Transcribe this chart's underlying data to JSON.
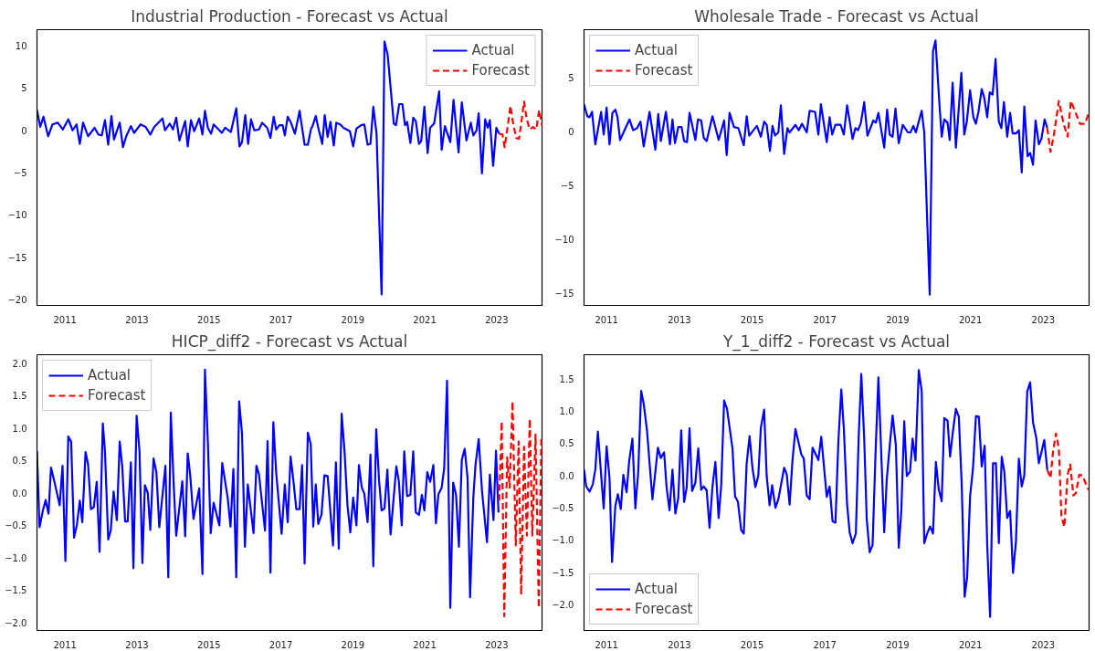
{
  "chart_data": [
    {
      "type": "line",
      "title": "Industrial Production - Forecast vs Actual",
      "legend": "top right",
      "xlim": [
        2010.22,
        2024.26
      ],
      "xticks": [
        2011,
        2013,
        2015,
        2017,
        2019,
        2021,
        2023
      ],
      "ylim": [
        -20.7,
        11.9
      ],
      "yticks": [
        {
          "value": -20,
          "label": "−20"
        },
        {
          "value": -15,
          "label": "−15"
        },
        {
          "value": -10,
          "label": "−10"
        },
        {
          "value": -5,
          "label": "−5"
        },
        0,
        5,
        10
      ],
      "series": [
        {
          "name": "Actual",
          "color": "#0000ff",
          "line_style": "solid",
          "x": [
            2010.22,
            2010.31,
            2010.4,
            2010.53,
            2010.65,
            2010.8,
            2010.94,
            2011.09,
            2011.21,
            2011.32,
            2011.41,
            2011.5,
            2011.64,
            2011.82,
            2011.93,
            2012.02,
            2012.11,
            2012.2,
            2012.29,
            2012.36,
            2012.52,
            2012.61,
            2012.7,
            2012.83,
            2012.92,
            2013.1,
            2013.24,
            2013.37,
            2013.48,
            2013.71,
            2013.78,
            2013.91,
            2014.0,
            2014.09,
            2014.18,
            2014.34,
            2014.41,
            2014.5,
            2014.59,
            2014.73,
            2014.82,
            2014.89,
            2014.97,
            2015.06,
            2015.13,
            2015.36,
            2015.45,
            2015.61,
            2015.76,
            2015.85,
            2015.92,
            2016.01,
            2016.09,
            2016.17,
            2016.26,
            2016.39,
            2016.48,
            2016.62,
            2016.71,
            2016.8,
            2016.87,
            2016.96,
            2017.05,
            2017.11,
            2017.19,
            2017.27,
            2017.39,
            2017.52,
            2017.66,
            2017.75,
            2017.84,
            2017.88,
            2017.97,
            2018.04,
            2018.15,
            2018.22,
            2018.3,
            2018.38,
            2018.47,
            2018.54,
            2018.65,
            2018.74,
            2018.92,
            2019.01,
            2019.1,
            2019.23,
            2019.32,
            2019.41,
            2019.49,
            2019.57,
            2019.66,
            2019.8,
            2019.88,
            2019.97,
            2020.14,
            2020.2,
            2020.29,
            2020.38,
            2020.45,
            2020.51,
            2020.6,
            2020.68,
            2020.75,
            2020.84,
            2020.9,
            2020.99,
            2021.08,
            2021.15,
            2021.26,
            2021.4,
            2021.47,
            2021.56,
            2021.71,
            2021.8,
            2021.94,
            2022.03,
            2022.16,
            2022.28,
            2022.35,
            2022.44,
            2022.5,
            2022.59,
            2022.68,
            2022.75,
            2022.81,
            2022.9,
            2022.99,
            2023.07
          ],
          "values": [
            2.4,
            0.4,
            1.6,
            -0.7,
            0.7,
            0.9,
            0.1,
            1.3,
            0,
            0.7,
            -1.6,
            0.9,
            -0.7,
            0.3,
            -0.5,
            -0.6,
            1.2,
            -1.7,
            1.7,
            -1.1,
            0.9,
            -2.0,
            -0.7,
            0.5,
            -0.3,
            0.7,
            0.4,
            -0.5,
            0.4,
            1.4,
            0,
            0.8,
            0.1,
            1.5,
            -1.2,
            1.1,
            -1.9,
            1.2,
            -0.1,
            1.4,
            -0.5,
            2.3,
            0.3,
            -0.4,
            0.7,
            -0.3,
            0.3,
            -0.2,
            2.6,
            -1.9,
            -1.4,
            1.8,
            -1.6,
            1.3,
            0,
            0.1,
            0.9,
            0.3,
            -0.9,
            1.6,
            0.1,
            0.6,
            0.6,
            -0.6,
            1.6,
            1.0,
            -0.4,
            2.3,
            -1.7,
            -1.7,
            0.2,
            0.5,
            1.7,
            0.3,
            -1.6,
            1.8,
            -0.8,
            1.0,
            -1.8,
            0.9,
            0.7,
            0.3,
            -0.1,
            -1.9,
            0.2,
            0.6,
            0.7,
            -1.7,
            -1.6,
            2.8,
            -0.4,
            -19.4,
            10.5,
            8.9,
            0.8,
            0.6,
            3.1,
            3.1,
            0.6,
            1.0,
            -1.5,
            1.5,
            1.1,
            -1.6,
            -1.3,
            2.8,
            -2.7,
            0.3,
            0.8,
            4.6,
            -2.3,
            0.5,
            -1.4,
            3.6,
            -2.6,
            3.3,
            -1.2,
            0.9,
            -0.6,
            0,
            2.0,
            -5.1,
            1.3,
            0.3,
            1.2,
            -4.2,
            0.3,
            -0.4
          ]
        },
        {
          "name": "Forecast",
          "color": "#ff0000",
          "line_style": "dashed",
          "x": [
            2023.07,
            2023.16,
            2023.22,
            2023.31,
            2023.38,
            2023.45,
            2023.54,
            2023.62,
            2023.7,
            2023.76,
            2023.83,
            2023.92,
            2024.01,
            2024.1,
            2024.18,
            2024.26
          ],
          "values": [
            -0.4,
            -0.5,
            -2.0,
            0.6,
            2.9,
            1.0,
            -0.9,
            -1.0,
            1.4,
            3.4,
            1.4,
            0.1,
            0.4,
            0.1,
            2.4,
            0.6
          ]
        }
      ]
    },
    {
      "type": "line",
      "title": "Wholesale Trade - Forecast vs Actual",
      "legend": "top left",
      "xlim": [
        2010.38,
        2024.26
      ],
      "xticks": [
        2011,
        2013,
        2015,
        2017,
        2019,
        2021,
        2023
      ],
      "ylim": [
        -16.1,
        9.4
      ],
      "yticks": [
        {
          "value": -15,
          "label": "−15"
        },
        {
          "value": -10,
          "label": "−10"
        },
        {
          "value": -5,
          "label": "−5"
        },
        0,
        5
      ],
      "series": [
        {
          "name": "Actual",
          "color": "#0000ff",
          "line_style": "solid",
          "x": [
            2010.38,
            2010.47,
            2010.53,
            2010.6,
            2010.69,
            2010.85,
            2010.92,
            2011.0,
            2011.08,
            2011.16,
            2011.24,
            2011.3,
            2011.37,
            2011.63,
            2011.73,
            2011.84,
            2011.93,
            2012.02,
            2012.18,
            2012.34,
            2012.42,
            2012.49,
            2012.63,
            2012.74,
            2012.81,
            2012.88,
            2012.97,
            2013.06,
            2013.13,
            2013.21,
            2013.28,
            2013.44,
            2013.51,
            2013.6,
            2013.67,
            2013.75,
            2013.91,
            2014.08,
            2014.23,
            2014.3,
            2014.38,
            2014.5,
            2014.62,
            2014.77,
            2014.85,
            2014.92,
            2015.13,
            2015.24,
            2015.33,
            2015.4,
            2015.49,
            2015.56,
            2015.63,
            2015.72,
            2015.79,
            2015.88,
            2015.97,
            2016.03,
            2016.19,
            2016.28,
            2016.37,
            2016.5,
            2016.58,
            2016.73,
            2016.82,
            2016.89,
            2017.05,
            2017.13,
            2017.2,
            2017.29,
            2017.43,
            2017.52,
            2017.61,
            2017.76,
            2017.84,
            2017.91,
            2017.99,
            2018.08,
            2018.17,
            2018.33,
            2018.4,
            2018.47,
            2018.63,
            2018.71,
            2018.78,
            2018.86,
            2018.94,
            2019.03,
            2019.14,
            2019.28,
            2019.35,
            2019.43,
            2019.5,
            2019.66,
            2019.73,
            2019.88,
            2019.97,
            2020.04,
            2020.14,
            2020.21,
            2020.28,
            2020.37,
            2020.43,
            2020.51,
            2020.6,
            2020.75,
            2020.83,
            2020.9,
            2020.99,
            2021.08,
            2021.15,
            2021.22,
            2021.31,
            2021.38,
            2021.46,
            2021.53,
            2021.61,
            2021.69,
            2021.78,
            2021.85,
            2021.92,
            2022.01,
            2022.09,
            2022.16,
            2022.25,
            2022.33,
            2022.41,
            2022.48,
            2022.57,
            2022.64,
            2022.72,
            2022.79,
            2022.88,
            2022.95,
            2023.04,
            2023.11
          ],
          "values": [
            2.5,
            1.4,
            1.3,
            1.8,
            -1.2,
            1.8,
            -0.3,
            2.2,
            -1.2,
            1.7,
            2.0,
            1.3,
            -0.8,
            1.1,
            0.1,
            0.3,
            0.9,
            -1.4,
            1.8,
            -1.7,
            1.6,
            -0.9,
            1.8,
            -1.2,
            1.1,
            -1.1,
            0.4,
            0.4,
            -0.9,
            -1.0,
            1.7,
            -0.8,
            1.1,
            1.0,
            -0.6,
            -0.9,
            1.4,
            -0.8,
            1.0,
            -2.2,
            1.7,
            0.4,
            0.3,
            -1.3,
            1.4,
            -0.4,
            0.5,
            -0.5,
            0.9,
            0.6,
            -1.8,
            0.5,
            -0.4,
            -0.1,
            2.4,
            -2.1,
            0.3,
            -0.1,
            0.6,
            0.1,
            0.7,
            -0.1,
            1.9,
            1.8,
            -0.3,
            2.5,
            -1.0,
            1.3,
            -0.3,
            0.6,
            0.6,
            -0.3,
            2.4,
            -0.7,
            0.3,
            0.1,
            0.8,
            2.7,
            -0.4,
            1.0,
            0.8,
            1.7,
            -1.5,
            2.0,
            -0.3,
            -0.5,
            2.1,
            -1.1,
            0.6,
            -0.1,
            -0.1,
            0.5,
            -0.1,
            1.9,
            -0.1,
            -15.1,
            7.4,
            8.4,
            2.9,
            -0.5,
            1.1,
            0.8,
            -0.8,
            4.5,
            -1.5,
            5.4,
            -0.3,
            0.9,
            3.8,
            1.3,
            0.7,
            1.8,
            3.9,
            3.1,
            1.3,
            3.6,
            3.4,
            6.7,
            0.9,
            0.3,
            2.7,
            -0.5,
            1.7,
            -0.2,
            -0.2,
            0.1,
            -3.8,
            2.3,
            -2.3,
            -2.0,
            -3.1,
            1.0,
            -1.2,
            -0.7,
            1.1,
            0.3
          ]
        },
        {
          "name": "Forecast",
          "color": "#ff0000",
          "line_style": "dashed",
          "x": [
            2023.11,
            2023.2,
            2023.29,
            2023.43,
            2023.56,
            2023.67,
            2023.76,
            2023.88,
            2024.01,
            2024.15,
            2024.26
          ],
          "values": [
            0.3,
            -1.9,
            -0.4,
            2.8,
            0.7,
            -0.5,
            2.8,
            1.8,
            0.7,
            0.7,
            1.8
          ]
        }
      ]
    },
    {
      "type": "line",
      "title": "HICP_diff2 - Forecast vs Actual",
      "legend": "top left",
      "xlim": [
        2010.22,
        2024.26
      ],
      "xticks": [
        2011,
        2013,
        2015,
        2017,
        2019,
        2021,
        2023
      ],
      "ylim": [
        -2.12,
        2.13
      ],
      "yticks": [
        {
          "value": -2,
          "label": "−2.0"
        },
        {
          "value": -1.5,
          "label": "−1.5"
        },
        {
          "value": -1,
          "label": "−1.0"
        },
        {
          "value": -0.5,
          "label": "−0.5"
        },
        {
          "value": 0,
          "label": "0.0"
        },
        0.5,
        {
          "value": 1,
          "label": "1.0"
        },
        1.5,
        {
          "value": 2,
          "label": "2.0"
        }
      ],
      "series": [
        {
          "name": "Actual",
          "color": "#0000ff",
          "line_style": "solid",
          "x": [
            2010.22,
            2010.29,
            2010.38,
            2010.46,
            2010.54,
            2010.61,
            2010.71,
            2010.85,
            2010.93,
            2011.01,
            2011.09,
            2011.17,
            2011.25,
            2011.33,
            2011.41,
            2011.48,
            2011.57,
            2011.64,
            2011.72,
            2011.8,
            2011.88,
            2011.96,
            2012.05,
            2012.11,
            2012.2,
            2012.27,
            2012.35,
            2012.44,
            2012.52,
            2012.59,
            2012.67,
            2012.74,
            2012.83,
            2012.9,
            2012.99,
            2013.07,
            2013.15,
            2013.22,
            2013.3,
            2013.37,
            2013.46,
            2013.54,
            2013.62,
            2013.79,
            2013.87,
            2013.94,
            2014.02,
            2014.09,
            2014.26,
            2014.34,
            2014.41,
            2014.48,
            2014.57,
            2014.73,
            2014.82,
            2014.89,
            2014.97,
            2015.05,
            2015.13,
            2015.29,
            2015.37,
            2015.52,
            2015.6,
            2015.68,
            2015.76,
            2015.84,
            2015.92,
            2016.0,
            2016.08,
            2016.24,
            2016.32,
            2016.39,
            2016.56,
            2016.63,
            2016.71,
            2016.79,
            2016.87,
            2017.02,
            2017.11,
            2017.19,
            2017.27,
            2017.34,
            2017.43,
            2017.52,
            2017.59,
            2017.66,
            2017.75,
            2017.83,
            2017.9,
            2017.97,
            2018.04,
            2018.13,
            2018.21,
            2018.3,
            2018.45,
            2018.53,
            2018.61,
            2018.69,
            2018.77,
            2018.85,
            2018.93,
            2019.01,
            2019.1,
            2019.17,
            2019.25,
            2019.32,
            2019.41,
            2019.49,
            2019.57,
            2019.65,
            2019.73,
            2019.8,
            2019.88,
            2019.96,
            2020.05,
            2020.21,
            2020.28,
            2020.36,
            2020.43,
            2020.51,
            2020.6,
            2020.68,
            2020.75,
            2020.84,
            2020.92,
            2020.99,
            2021.07,
            2021.15,
            2021.24,
            2021.31,
            2021.38,
            2021.47,
            2021.54,
            2021.62,
            2021.71,
            2021.79,
            2021.87,
            2021.95,
            2022.03,
            2022.11,
            2022.19,
            2022.26,
            2022.35,
            2022.41,
            2022.5,
            2022.59,
            2022.73,
            2022.81,
            2022.91,
            2022.98,
            2023.05
          ],
          "values": [
            0.64,
            -0.53,
            -0.28,
            -0.11,
            -0.32,
            0.39,
            0.16,
            -0.19,
            0.42,
            -1.05,
            0.87,
            0.79,
            -0.69,
            -0.49,
            -0.12,
            -0.45,
            0.63,
            0.44,
            -0.25,
            -0.22,
            0.17,
            -0.91,
            1.07,
            0.64,
            -0.72,
            -0.58,
            0.02,
            -0.42,
            0.79,
            0.41,
            -0.44,
            -0.44,
            0.47,
            -1.16,
            1.19,
            0.64,
            -1.08,
            0.12,
            0.0,
            -0.57,
            0.53,
            0.32,
            -0.53,
            0.42,
            -1.3,
            1.24,
            0.13,
            -0.66,
            0.18,
            -0.67,
            0.61,
            0.27,
            -0.4,
            0.07,
            -1.25,
            1.9,
            0.79,
            -0.62,
            -0.15,
            -0.5,
            0.46,
            -0.07,
            -0.52,
            0.37,
            -1.3,
            1.41,
            0.92,
            -0.83,
            0.13,
            -0.62,
            0.42,
            0.29,
            -0.58,
            0.8,
            -1.23,
            1.09,
            0.31,
            -0.63,
            0.13,
            -0.45,
            0.56,
            0.23,
            -0.25,
            -0.25,
            0.43,
            -1.09,
            0.93,
            0.75,
            -0.52,
            0.13,
            -0.48,
            -0.33,
            0.27,
            0.26,
            -0.81,
            0.47,
            -0.86,
            1.22,
            0.64,
            -0.18,
            -0.61,
            -0.07,
            -0.5,
            0.43,
            0.08,
            -0.01,
            -0.45,
            0.59,
            -1.13,
            0.98,
            0.19,
            -0.27,
            -0.24,
            0.36,
            -0.64,
            0.41,
            0.18,
            -0.5,
            0.64,
            -0.05,
            -0.03,
            0.64,
            -0.3,
            -0.34,
            -0.03,
            -0.27,
            0.32,
            0.17,
            0.43,
            -0.47,
            -0.02,
            0.08,
            0.38,
            1.73,
            -1.77,
            0.16,
            -0.03,
            -0.83,
            0.51,
            0.68,
            0.23,
            -1.61,
            -0.07,
            0.43,
            0.83,
            0.04,
            -0.76,
            0.28,
            -0.42,
            0.65,
            -0.3
          ]
        },
        {
          "name": "Forecast",
          "color": "#ff0000",
          "line_style": "dashed",
          "x": [
            2023.07,
            2023.14,
            2023.21,
            2023.29,
            2023.36,
            2023.44,
            2023.53,
            2023.61,
            2023.68,
            2023.76,
            2023.84,
            2023.92,
            2023.99,
            2024.08,
            2024.17,
            2024.24
          ],
          "values": [
            -0.12,
            1.1,
            -1.9,
            0.55,
            0.08,
            1.41,
            -0.81,
            0.79,
            -1.57,
            0.71,
            -0.66,
            1.14,
            -0.66,
            0.9,
            -1.77,
            0.83
          ]
        }
      ]
    },
    {
      "type": "line",
      "title": "Y_1_diff2 - Forecast vs Actual",
      "legend": "bottom left",
      "xlim": [
        2010.38,
        2024.26
      ],
      "xticks": [
        2011,
        2013,
        2015,
        2017,
        2019,
        2021,
        2023
      ],
      "ylim": [
        -2.4,
        1.87
      ],
      "yticks": [
        {
          "value": -2,
          "label": "−2.0"
        },
        {
          "value": -1.5,
          "label": "−1.5"
        },
        {
          "value": -1,
          "label": "−1.0"
        },
        {
          "value": -0.5,
          "label": "−0.5"
        },
        {
          "value": 0,
          "label": "0.0"
        },
        0.5,
        {
          "value": 1,
          "label": "1.0"
        },
        1.5
      ],
      "series": [
        {
          "name": "Actual",
          "color": "#0000ff",
          "line_style": "solid",
          "x": [
            2010.38,
            2010.44,
            2010.53,
            2010.62,
            2010.69,
            2010.76,
            2010.92,
            2011.0,
            2011.08,
            2011.15,
            2011.24,
            2011.31,
            2011.39,
            2011.46,
            2011.55,
            2011.62,
            2011.71,
            2011.79,
            2011.87,
            2011.95,
            2012.02,
            2012.11,
            2012.26,
            2012.41,
            2012.49,
            2012.58,
            2012.65,
            2012.73,
            2012.81,
            2012.89,
            2012.97,
            2013.05,
            2013.13,
            2013.2,
            2013.28,
            2013.35,
            2013.44,
            2013.52,
            2013.6,
            2013.67,
            2013.75,
            2013.83,
            2013.91,
            2013.99,
            2014.08,
            2014.15,
            2014.23,
            2014.31,
            2014.46,
            2014.53,
            2014.61,
            2014.7,
            2014.77,
            2014.85,
            2014.93,
            2015.01,
            2015.09,
            2015.17,
            2015.24,
            2015.33,
            2015.4,
            2015.48,
            2015.55,
            2015.64,
            2015.72,
            2015.88,
            2015.95,
            2016.03,
            2016.11,
            2016.19,
            2016.35,
            2016.42,
            2016.5,
            2016.58,
            2016.66,
            2016.82,
            2016.9,
            2017.05,
            2017.13,
            2017.21,
            2017.29,
            2017.37,
            2017.45,
            2017.52,
            2017.61,
            2017.68,
            2017.76,
            2017.85,
            2017.93,
            2018.0,
            2018.08,
            2018.15,
            2018.23,
            2018.31,
            2018.39,
            2018.47,
            2018.55,
            2018.63,
            2018.7,
            2018.78,
            2018.86,
            2018.95,
            2019.03,
            2019.1,
            2019.18,
            2019.25,
            2019.34,
            2019.41,
            2019.49,
            2019.58,
            2019.66,
            2019.73,
            2019.81,
            2019.89,
            2019.97,
            2020.05,
            2020.13,
            2020.21,
            2020.28,
            2020.37,
            2020.44,
            2020.52,
            2020.6,
            2020.68,
            2020.76,
            2020.84,
            2020.91,
            2020.99,
            2021.07,
            2021.15,
            2021.23,
            2021.31,
            2021.39,
            2021.46,
            2021.54,
            2021.62,
            2021.7,
            2021.78,
            2021.86,
            2021.93,
            2022.01,
            2022.09,
            2022.17,
            2022.25,
            2022.33,
            2022.41,
            2022.48,
            2022.56,
            2022.64,
            2022.72,
            2022.81,
            2022.88,
            2023.03,
            2023.11
          ],
          "values": [
            0.09,
            -0.17,
            -0.25,
            -0.14,
            0.09,
            0.68,
            -0.51,
            0.45,
            -0.04,
            -1.34,
            -0.47,
            -0.29,
            -0.52,
            0.01,
            -0.26,
            0.22,
            0.57,
            -0.51,
            0.06,
            1.31,
            1.11,
            0.7,
            -0.37,
            0.43,
            0.27,
            0.36,
            -0.19,
            -0.54,
            0.09,
            -0.59,
            -0.35,
            0.7,
            -0.41,
            -0.19,
            0.73,
            -0.24,
            -0.11,
            0.42,
            -0.22,
            -0.17,
            -0.23,
            -0.81,
            -0.17,
            0.21,
            -0.66,
            -0.15,
            1.16,
            1.03,
            0.42,
            -0.32,
            -0.41,
            -0.85,
            -0.9,
            0.19,
            0.61,
            0.11,
            -0.18,
            0.0,
            0.74,
            1.02,
            -0.01,
            -0.46,
            -0.15,
            -0.5,
            -0.37,
            0.12,
            0.02,
            -0.45,
            0.24,
            0.72,
            0.33,
            0.26,
            -0.31,
            -0.37,
            0.43,
            0.24,
            0.6,
            -0.33,
            -0.17,
            -0.71,
            -0.73,
            0.53,
            1.33,
            0.73,
            -0.45,
            -0.88,
            -1.05,
            -0.9,
            0.62,
            1.57,
            0.57,
            -0.68,
            -1.19,
            -1.08,
            0.32,
            1.52,
            0.32,
            -0.88,
            -0.06,
            0.45,
            0.93,
            0.47,
            -1.12,
            -0.55,
            0.84,
            -0.01,
            0.06,
            0.57,
            0.23,
            1.63,
            1.31,
            -1.05,
            -0.9,
            -0.79,
            -0.9,
            0.21,
            -0.22,
            -0.4,
            0.89,
            0.85,
            0.29,
            0.69,
            1.03,
            0.91,
            -0.14,
            -1.88,
            -1.57,
            -0.32,
            0.11,
            0.92,
            0.91,
            0.14,
            0.46,
            -1.06,
            -2.19,
            0.19,
            0.19,
            -1.05,
            0.29,
            0.06,
            -0.66,
            -0.55,
            -1.51,
            -1.03,
            0.26,
            -0.17,
            0.0,
            1.3,
            1.44,
            0.82,
            0.58,
            0.19,
            0.55,
            0.09
          ]
        },
        {
          "name": "Forecast",
          "color": "#ff0000",
          "line_style": "dashed",
          "x": [
            2023.11,
            2023.2,
            2023.27,
            2023.35,
            2023.43,
            2023.5,
            2023.58,
            2023.67,
            2023.74,
            2023.83,
            2023.9,
            2023.99,
            2024.08,
            2024.17,
            2024.24
          ],
          "values": [
            0.09,
            -0.04,
            0.37,
            0.65,
            0.42,
            -0.63,
            -0.8,
            0.01,
            0.17,
            -0.31,
            -0.27,
            0.01,
            0.0,
            -0.13,
            -0.22
          ]
        }
      ]
    }
  ]
}
